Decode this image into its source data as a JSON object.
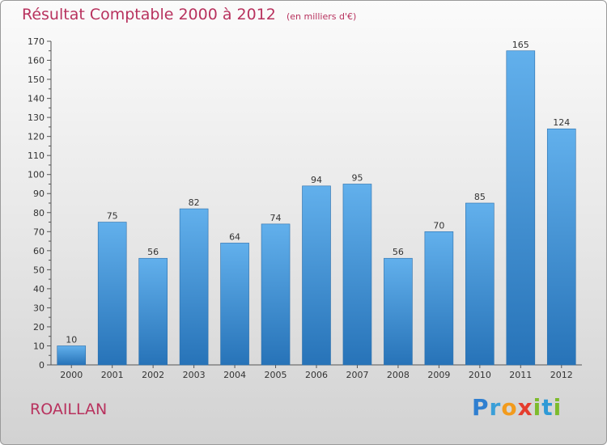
{
  "header": {
    "title": "Résultat Comptable 2000 à 2012",
    "unit": "(en milliers d'€)"
  },
  "footer": {
    "commune": "ROAILLAN",
    "logo_letters": [
      {
        "ch": "P",
        "color": "#2f7fd0"
      },
      {
        "ch": "r",
        "color": "#3a9fd8"
      },
      {
        "ch": "o",
        "color": "#f29b1d"
      },
      {
        "ch": "x",
        "color": "#e53d2e"
      },
      {
        "ch": "i",
        "color": "#7dbb2c"
      },
      {
        "ch": "t",
        "color": "#2f9ad6"
      },
      {
        "ch": "i",
        "color": "#7dbb2c"
      }
    ]
  },
  "chart_data": {
    "type": "bar",
    "title": "Résultat Comptable 2000 à 2012",
    "subtitle": "(en milliers d'€)",
    "xlabel": "",
    "ylabel": "",
    "categories": [
      "2000",
      "2001",
      "2002",
      "2003",
      "2004",
      "2005",
      "2006",
      "2007",
      "2008",
      "2009",
      "2010",
      "2011",
      "2012"
    ],
    "values": [
      10,
      75,
      56,
      82,
      64,
      74,
      94,
      95,
      56,
      70,
      85,
      165,
      124
    ],
    "ylim": [
      0,
      170
    ],
    "yticks": [
      0,
      10,
      20,
      30,
      40,
      50,
      60,
      70,
      80,
      90,
      100,
      110,
      120,
      130,
      140,
      150,
      160,
      170
    ],
    "grid": false,
    "bar_color": "#3f8fd6",
    "legend": "none"
  }
}
